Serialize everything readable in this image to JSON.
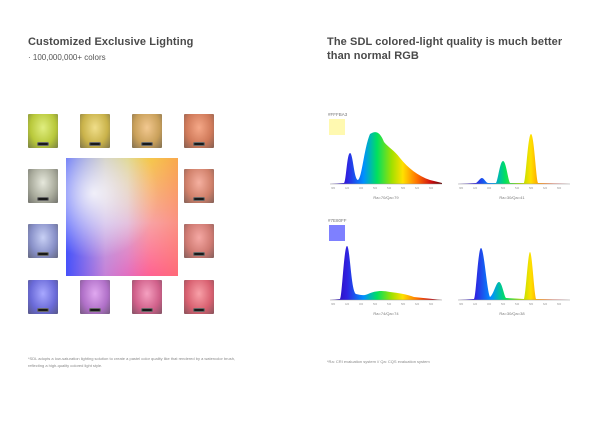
{
  "left": {
    "title": "Customized Exclusive Lighting",
    "subtitle": "· 100,000,000+ colors",
    "footnote_line1": "*SDL adopts a low-saturation lighting solution to create a pastel color quality like that rendered by a watercolor brush,",
    "footnote_line2": "reflecting a high-quality colored light style.",
    "tiles": [
      {
        "name": "tile-1",
        "color": "#b8c83a",
        "glow": "#e0ee80"
      },
      {
        "name": "tile-2",
        "color": "#c9b24a",
        "glow": "#f0de8a"
      },
      {
        "name": "tile-3",
        "color": "#c9a05a",
        "glow": "#f2c890"
      },
      {
        "name": "tile-4",
        "color": "#d07a5a",
        "glow": "#f5a888"
      },
      {
        "name": "tile-5",
        "color": "#a9ab9c",
        "glow": "#e6e8dc"
      },
      {
        "name": "tile-6",
        "color": "#d0806a",
        "glow": "#f5b0a0"
      },
      {
        "name": "tile-7",
        "color": "#8890c8",
        "glow": "#c8d0f5"
      },
      {
        "name": "tile-8",
        "color": "#cf7a72",
        "glow": "#f5a8a4"
      },
      {
        "name": "tile-9",
        "color": "#6a6ad8",
        "glow": "#a8a8ff"
      },
      {
        "name": "tile-10",
        "color": "#b070c8",
        "glow": "#e0a8f0"
      },
      {
        "name": "tile-11",
        "color": "#d0608a",
        "glow": "#f5a0c0"
      },
      {
        "name": "tile-12",
        "color": "#d86070",
        "glow": "#f8a0a8"
      }
    ]
  },
  "right": {
    "title_line1": "The SDL colored-light quality is much better",
    "title_line2": "than normal RGB",
    "footnote": "*Ra: CRI evaluation system  //  Qa: CQS evaluation system",
    "rows": [
      {
        "hex": "#FFFBA3",
        "swatch": "#fff9b0",
        "sdl_caption": "Ra=70/Qa=79",
        "rgb_caption": "Ra=30/Qa=41"
      },
      {
        "hex": "#7E80FF",
        "swatch": "#7e80ff",
        "sdl_caption": "Ra=74/Qa=74",
        "rgb_caption": "Ra=30/Qa=38"
      }
    ]
  }
}
